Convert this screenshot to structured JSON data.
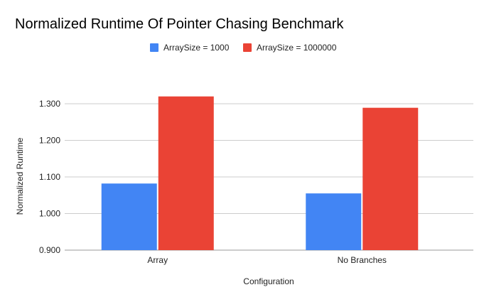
{
  "chart_data": {
    "type": "bar",
    "title": "Normalized Runtime Of Pointer Chasing Benchmark",
    "xlabel": "Configuration",
    "ylabel": "Normalized Runtime",
    "categories": [
      "Array",
      "No Branches"
    ],
    "series": [
      {
        "name": "ArraySize = 1000",
        "color": "#4285f4",
        "values": [
          1.082,
          1.055
        ]
      },
      {
        "name": "ArraySize = 1000000",
        "color": "#ea4335",
        "values": [
          1.32,
          1.289
        ]
      }
    ],
    "ylim": [
      0.9,
      1.3
    ],
    "yticks": [
      "0.900",
      "1.000",
      "1.100",
      "1.200",
      "1.300"
    ],
    "grid": true,
    "legend_position": "top"
  }
}
